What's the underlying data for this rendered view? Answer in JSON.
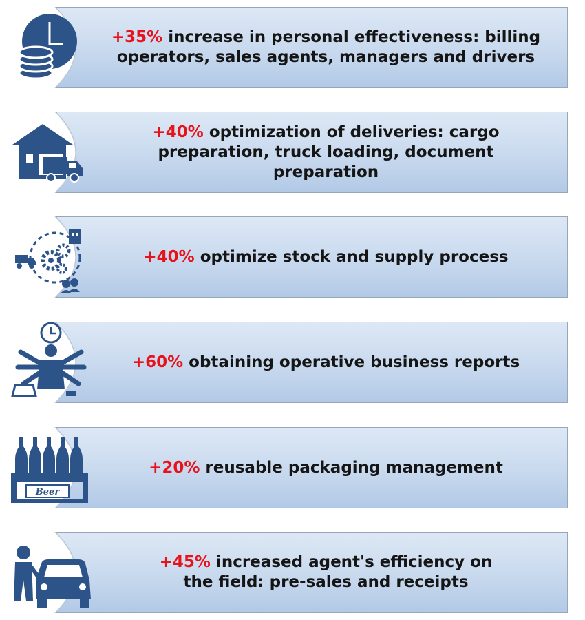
{
  "colors": {
    "accent": "#e8121b",
    "icon_blue": "#2d5489",
    "panel_top": "#dde8f5",
    "panel_bottom": "#b2c9e6"
  },
  "items": [
    {
      "icon": "clock-coins-icon",
      "percent": "+35%",
      "text": " increase in personal effectiveness: billing operators, sales agents, managers and drivers"
    },
    {
      "icon": "warehouse-truck-icon",
      "percent": "+40%",
      "text": " optimization of deliveries: cargo preparation, truck loading, document preparation"
    },
    {
      "icon": "supply-chain-gears-icon",
      "percent": "+40%",
      "text": " optimize stock and supply process"
    },
    {
      "icon": "multitasking-person-icon",
      "percent": "+60%",
      "text": " obtaining operative business reports"
    },
    {
      "icon": "beer-crate-icon",
      "percent": "+20%",
      "text": " reusable packaging management"
    },
    {
      "icon": "agent-car-icon",
      "percent": "+45%",
      "text": " increased agent's efficiency on the field: pre-sales and receipts"
    }
  ]
}
